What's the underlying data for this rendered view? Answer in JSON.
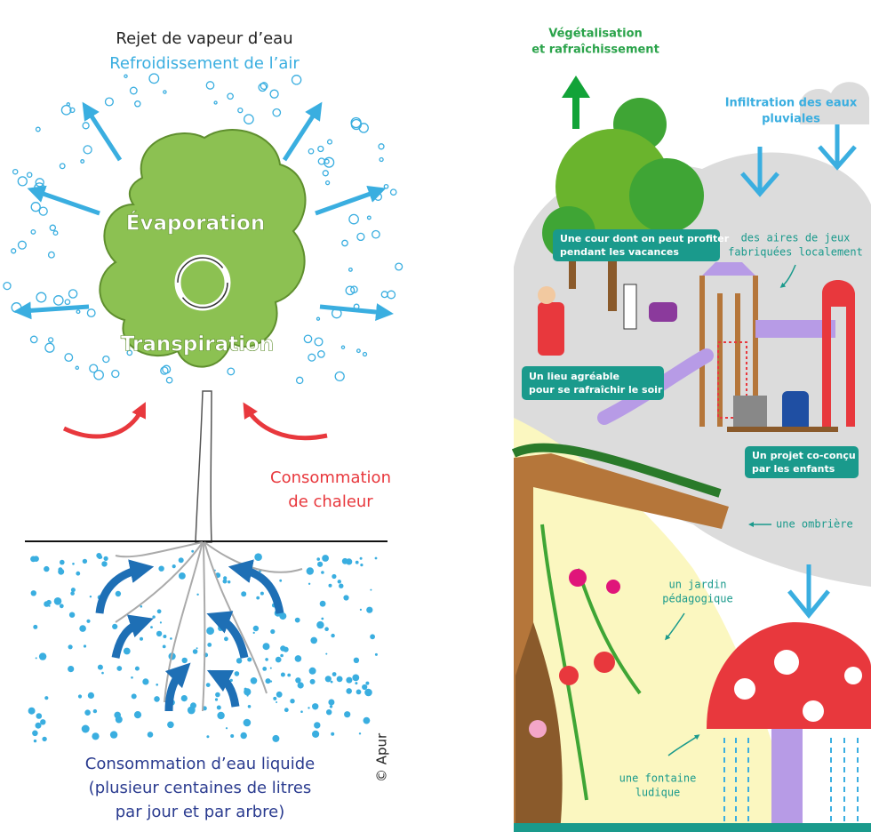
{
  "left_panel": {
    "top_lines": [
      "Rejet de vapeur d’eau",
      "Refroidissement de l’air"
    ],
    "canopy_labels": [
      "Évaporation",
      "Transpiration"
    ],
    "heat_lines": [
      "Consommation",
      "de chaleur"
    ],
    "water_lines": [
      "Consommation d’eau liquide",
      "(plusieur centaines de litres",
      "par jour et par arbre)"
    ],
    "credit": "© Apur"
  },
  "right_panel": {
    "greening_lines": [
      "Végétalisation",
      "et rafraîchissement"
    ],
    "infiltration_lines": [
      "Infiltration des eaux",
      "pluviales"
    ],
    "labels": [
      {
        "lines": [
          "Une cour dont on peut profiter",
          "pendant les vacances"
        ]
      },
      {
        "lines": [
          "des aires de jeux",
          "fabriquées localement"
        ]
      },
      {
        "lines": [
          "Un lieu agréable",
          "pour se rafraîchir le soir"
        ]
      },
      {
        "lines": [
          "Un projet co-conçu",
          "par les enfants"
        ]
      },
      {
        "lines": [
          "une ombrière"
        ]
      },
      {
        "lines": [
          "un jardin",
          "pédagogique"
        ]
      },
      {
        "lines": [
          "une fontaine",
          "ludique"
        ]
      }
    ]
  }
}
